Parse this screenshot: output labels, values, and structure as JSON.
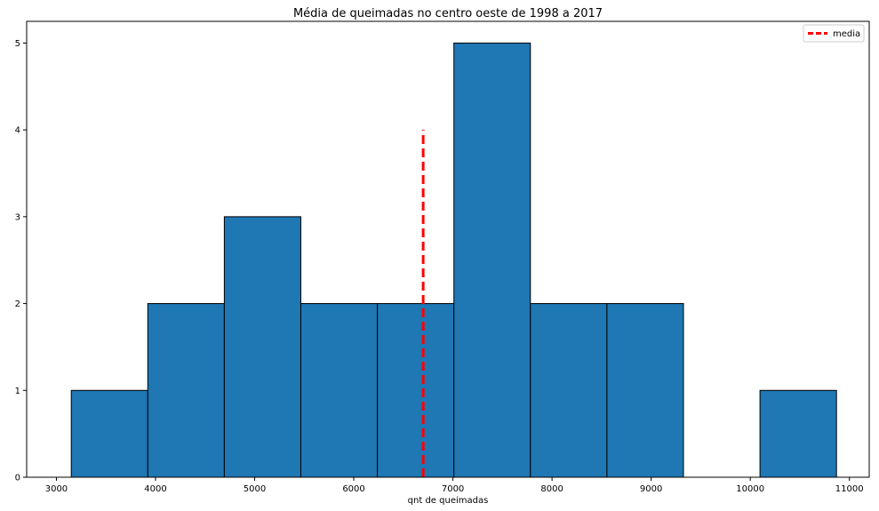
{
  "chart_data": {
    "type": "bar",
    "title": "Média de queimadas no centro oeste de 1998 a 2017",
    "xlabel": "qnt de queimadas",
    "ylabel": "",
    "xlim": [
      2700,
      11200
    ],
    "ylim": [
      0,
      5.25
    ],
    "xticks": [
      3000,
      4000,
      5000,
      6000,
      7000,
      8000,
      9000,
      10000,
      11000
    ],
    "yticks": [
      0,
      1,
      2,
      3,
      4,
      5
    ],
    "bins": [
      {
        "start": 3150,
        "end": 3922,
        "count": 1
      },
      {
        "start": 3922,
        "end": 4694,
        "count": 2
      },
      {
        "start": 4694,
        "end": 5466,
        "count": 3
      },
      {
        "start": 5466,
        "end": 6238,
        "count": 2
      },
      {
        "start": 6238,
        "end": 7010,
        "count": 2
      },
      {
        "start": 7010,
        "end": 7782,
        "count": 5
      },
      {
        "start": 7782,
        "end": 8554,
        "count": 2
      },
      {
        "start": 8554,
        "end": 9326,
        "count": 2
      },
      {
        "start": 9326,
        "end": 10098,
        "count": 0
      },
      {
        "start": 10098,
        "end": 10870,
        "count": 1
      }
    ],
    "mean_line": {
      "name": "media",
      "x": 6700,
      "y_range": [
        0,
        4
      ],
      "color": "#ff0000",
      "style": "dashed"
    },
    "legend": {
      "position": "top-right",
      "entries": [
        "media"
      ]
    },
    "bar_color": "#1f77b4",
    "edge_color": "#000000",
    "grid": false
  }
}
